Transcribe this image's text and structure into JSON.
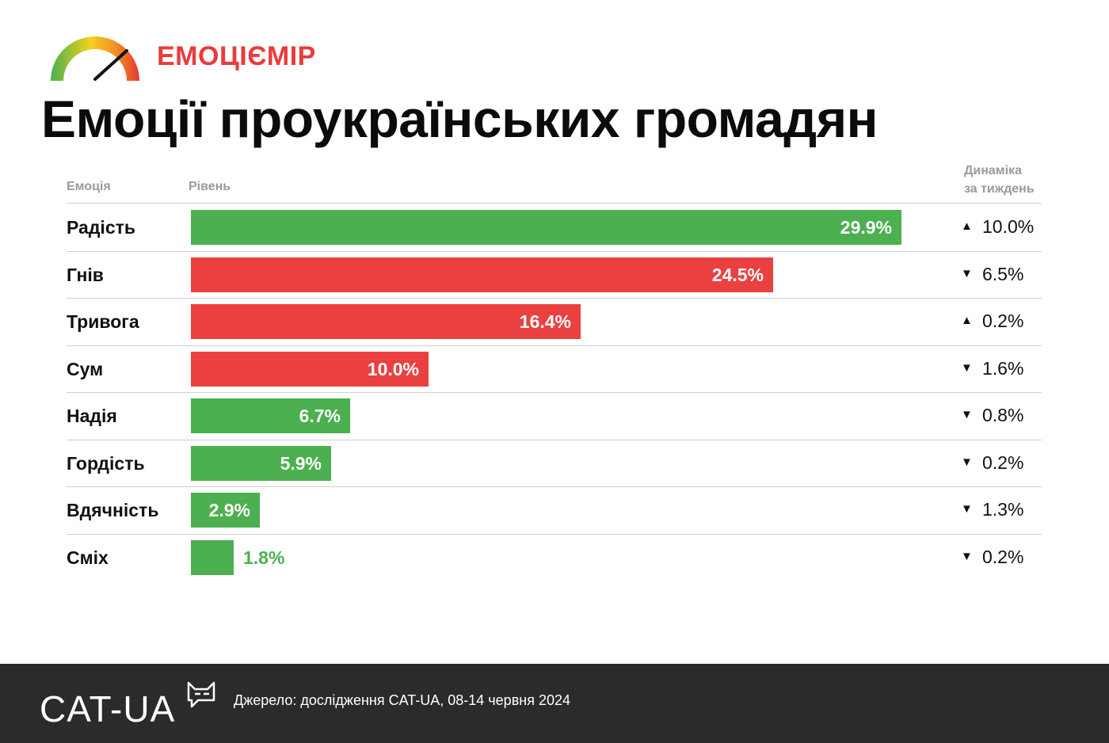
{
  "brand": {
    "name": "ЕМОЦІЄМІР",
    "icon": "speedometer-gauge-icon"
  },
  "title": "Емоції проукраїнських громадян",
  "columns": {
    "emotion": "Емоція",
    "level": "Рівень",
    "dynamics_line1": "Динаміка",
    "dynamics_line2": "за тиждень"
  },
  "colors": {
    "positive": "#4caf50",
    "negative": "#ea4040",
    "footer_bg": "#2b2b2b",
    "brand_red": "#ea3b3b"
  },
  "chart_data": {
    "type": "bar",
    "orientation": "horizontal",
    "unit": "%",
    "categories": [
      "Радість",
      "Гнів",
      "Тривога",
      "Сум",
      "Надія",
      "Гордість",
      "Вдячність",
      "Сміх"
    ],
    "values": [
      29.9,
      24.5,
      16.4,
      10.0,
      6.7,
      5.9,
      2.9,
      1.8
    ],
    "value_labels": [
      "29.9%",
      "24.5%",
      "16.4%",
      "10.0%",
      "6.7%",
      "5.9%",
      "2.9%",
      "1.8%"
    ],
    "sentiment": [
      "positive",
      "negative",
      "negative",
      "negative",
      "positive",
      "positive",
      "positive",
      "positive"
    ],
    "weekly_change": [
      {
        "direction": "up",
        "value": "10.0%"
      },
      {
        "direction": "down",
        "value": "6.5%"
      },
      {
        "direction": "up",
        "value": "0.2%"
      },
      {
        "direction": "down",
        "value": "1.6%"
      },
      {
        "direction": "down",
        "value": "0.8%"
      },
      {
        "direction": "down",
        "value": "0.2%"
      },
      {
        "direction": "down",
        "value": "1.3%"
      },
      {
        "direction": "down",
        "value": "0.2%"
      }
    ]
  },
  "footer": {
    "logo": "CAT-UA",
    "logo_icon": "cat-speech-bubble-icon",
    "source": "Джерело: дослідження CAT-UA, 08-14 червня 2024"
  }
}
